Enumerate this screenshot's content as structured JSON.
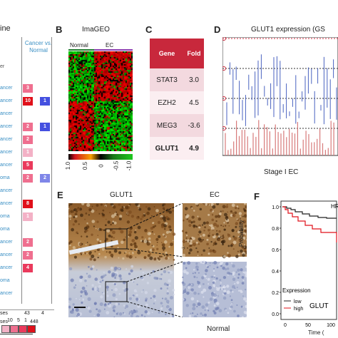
{
  "panels": {
    "A": {
      "label": "",
      "title": "ine",
      "header": "Cancer vs. Normal",
      "rows": [
        {
          "name": "ancer",
          "v1": "3",
          "v2": ""
        },
        {
          "name": "ancer",
          "v1": "10",
          "v2": "1"
        },
        {
          "name": "ancer",
          "v1": "",
          "v2": ""
        },
        {
          "name": "ancer",
          "v1": "2",
          "v2": "1"
        },
        {
          "name": "ancer",
          "v1": "2",
          "v2": ""
        },
        {
          "name": "ancer",
          "v1": "1",
          "v2": ""
        },
        {
          "name": "ancer",
          "v1": "5",
          "v2": ""
        },
        {
          "name": "oma",
          "v1": "2",
          "v2": "2"
        },
        {
          "name": "ancer",
          "v1": "",
          "v2": ""
        },
        {
          "name": "ancer",
          "v1": "8",
          "v2": ""
        },
        {
          "name": "oma",
          "v1": "1",
          "v2": ""
        },
        {
          "name": "oma",
          "v1": "",
          "v2": ""
        },
        {
          "name": "ancer",
          "v1": "2",
          "v2": ""
        },
        {
          "name": "ancer",
          "v1": "2",
          "v2": ""
        },
        {
          "name": "ancer",
          "v1": "4",
          "v2": ""
        },
        {
          "name": "oma",
          "v1": "",
          "v2": ""
        },
        {
          "name": "ancer",
          "v1": "",
          "v2": ""
        }
      ],
      "totals_label_1": "ses",
      "total_1a": "43",
      "total_1b": "4",
      "totals_label_2": "ses",
      "total_2": "448",
      "legend": [
        "10",
        "5",
        "1"
      ]
    },
    "B": {
      "label": "B",
      "title": "ImaGEO",
      "groups": [
        "Normal",
        "EC"
      ],
      "scale": [
        "1.0",
        "0.5",
        "0",
        "-0.5",
        "-1.0"
      ]
    },
    "C": {
      "label": "C",
      "headers": [
        "Gene",
        "Fold"
      ],
      "rows": [
        {
          "gene": "STAT3",
          "fold": "3.0"
        },
        {
          "gene": "EZH2",
          "fold": "4.5"
        },
        {
          "gene": "MEG3",
          "fold": "-3.6"
        },
        {
          "gene": "GLUT1",
          "fold": "4.9"
        }
      ]
    },
    "D": {
      "label": "D",
      "title": "GLUT1 expression (GS",
      "xlabel": "Stage I EC"
    },
    "E": {
      "label": "E",
      "left_title": "GLUT1",
      "right_title": "EC",
      "bottom_right": "Normal"
    },
    "F": {
      "label": "F",
      "hr": "HR",
      "ylabel": "Probability",
      "xlabel": "Time (",
      "yticks": [
        "1.0",
        "0.8",
        "0.6",
        "0.4",
        "0.2",
        "0.0"
      ],
      "xticks": [
        "0",
        "50",
        "100"
      ],
      "legend_title": "Expression",
      "legend_low": "low",
      "legend_high": "high",
      "legend_extra": "GLUT"
    }
  },
  "colors": {
    "accent": "#c8283c",
    "blue_text": "#3a8fc4",
    "heat_red": "#d2151e",
    "heat_green": "#1ec81e"
  }
}
